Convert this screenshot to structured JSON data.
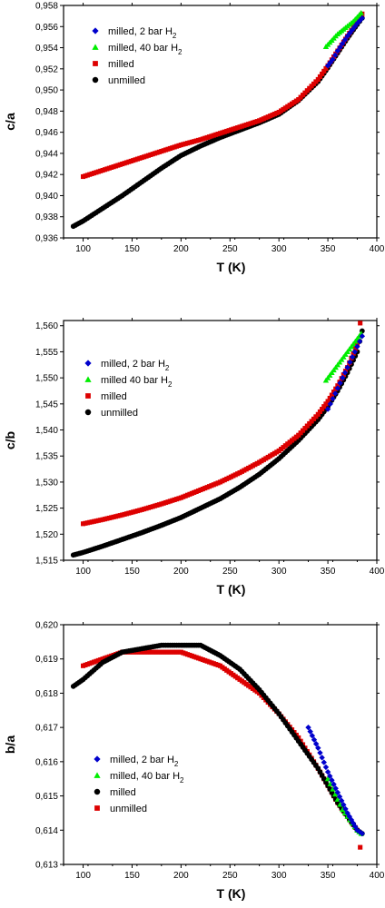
{
  "chart_data": [
    {
      "type": "scatter",
      "xlabel": "T (K)",
      "ylabel": "c/a",
      "xlim": [
        80,
        400
      ],
      "ylim": [
        0.936,
        0.958
      ],
      "xticks": [
        100,
        150,
        200,
        250,
        300,
        350,
        400
      ],
      "xtick_labels": [
        "100",
        "150",
        "200",
        "250",
        "300",
        "350",
        "400"
      ],
      "yticks": [
        0.936,
        0.938,
        0.94,
        0.942,
        0.944,
        0.946,
        0.948,
        0.95,
        0.952,
        0.954,
        0.956,
        0.958
      ],
      "ytick_labels": [
        "0,936",
        "0,938",
        "0,940",
        "0,942",
        "0,944",
        "0,946",
        "0,948",
        "0,950",
        "0,952",
        "0,954",
        "0,956",
        "0,958"
      ],
      "legend_position": "top-left",
      "series": [
        {
          "name": "milled, 2 bar H",
          "sub": "2",
          "marker": "diamond",
          "color": "#0000cc",
          "x": [
            350,
            355,
            360,
            365,
            370,
            375,
            380,
            385
          ],
          "y": [
            0.9523,
            0.9529,
            0.9537,
            0.9544,
            0.9551,
            0.9557,
            0.9563,
            0.9568
          ]
        },
        {
          "name": "milled, 40 bar H",
          "sub": "2",
          "marker": "triangle",
          "color": "#00ee00",
          "x": [
            348,
            352,
            356,
            360,
            364,
            368,
            372,
            376,
            380,
            384
          ],
          "y": [
            0.9541,
            0.9545,
            0.9549,
            0.9553,
            0.9556,
            0.9559,
            0.9562,
            0.9565,
            0.9569,
            0.9573
          ]
        },
        {
          "name": "milled",
          "sub": "",
          "marker": "square",
          "color": "#dd0000",
          "x": [
            100,
            120,
            140,
            160,
            180,
            200,
            220,
            240,
            260,
            280,
            300,
            320,
            340,
            350,
            360,
            370,
            380,
            385
          ],
          "y": [
            0.9418,
            0.9424,
            0.943,
            0.9436,
            0.9442,
            0.9448,
            0.9453,
            0.9459,
            0.9465,
            0.9471,
            0.9479,
            0.9491,
            0.951,
            0.9523,
            0.9537,
            0.9551,
            0.9565,
            0.9572
          ]
        },
        {
          "name": "unmilled",
          "sub": "",
          "marker": "circle",
          "color": "#000000",
          "x": [
            90,
            100,
            120,
            140,
            160,
            180,
            200,
            220,
            240,
            260,
            280,
            300,
            320,
            340,
            350,
            360,
            370,
            380,
            385
          ],
          "y": [
            0.9371,
            0.9376,
            0.9388,
            0.94,
            0.9413,
            0.9426,
            0.9438,
            0.9447,
            0.9455,
            0.9462,
            0.9469,
            0.9477,
            0.949,
            0.9508,
            0.9521,
            0.9535,
            0.9549,
            0.9562,
            0.9568
          ]
        }
      ]
    },
    {
      "type": "scatter",
      "xlabel": "T (K)",
      "ylabel": "c/b",
      "xlim": [
        80,
        400
      ],
      "ylim": [
        1.515,
        1.561
      ],
      "xticks": [
        100,
        150,
        200,
        250,
        300,
        350,
        400
      ],
      "xtick_labels": [
        "100",
        "150",
        "200",
        "250",
        "300",
        "350",
        "400"
      ],
      "yticks": [
        1.515,
        1.52,
        1.525,
        1.53,
        1.535,
        1.54,
        1.545,
        1.55,
        1.555,
        1.56
      ],
      "ytick_labels": [
        "1,515",
        "1,520",
        "1,525",
        "1,530",
        "1,535",
        "1,540",
        "1,545",
        "1,550",
        "1,555",
        "1,560"
      ],
      "legend_position": "top-left",
      "series": [
        {
          "name": "milled, 2 bar H",
          "sub": "2",
          "marker": "diamond",
          "color": "#0000cc",
          "x": [
            350,
            355,
            360,
            365,
            370,
            375,
            380,
            385
          ],
          "y": [
            1.544,
            1.546,
            1.548,
            1.55,
            1.552,
            1.554,
            1.556,
            1.558
          ]
        },
        {
          "name": "milled 40 bar H",
          "sub": "2",
          "marker": "triangle",
          "color": "#00ee00",
          "x": [
            348,
            352,
            356,
            360,
            364,
            368,
            372,
            376,
            380,
            384
          ],
          "y": [
            1.5495,
            1.5505,
            1.5515,
            1.5525,
            1.5535,
            1.5545,
            1.5555,
            1.5565,
            1.5575,
            1.5585
          ]
        },
        {
          "name": "milled",
          "sub": "",
          "marker": "square",
          "color": "#dd0000",
          "x": [
            100,
            120,
            140,
            160,
            180,
            200,
            220,
            240,
            260,
            280,
            300,
            320,
            340,
            350,
            360,
            370,
            380,
            383
          ],
          "y": [
            1.522,
            1.5228,
            1.5237,
            1.5247,
            1.5258,
            1.527,
            1.5285,
            1.53,
            1.5318,
            1.5338,
            1.536,
            1.539,
            1.543,
            1.5455,
            1.5485,
            1.552,
            1.5565,
            1.5605
          ]
        },
        {
          "name": "unmilled",
          "sub": "",
          "marker": "circle",
          "color": "#000000",
          "x": [
            90,
            100,
            120,
            140,
            160,
            180,
            200,
            220,
            240,
            260,
            280,
            300,
            320,
            340,
            350,
            360,
            370,
            380,
            385
          ],
          "y": [
            1.516,
            1.5165,
            1.5177,
            1.519,
            1.5203,
            1.5217,
            1.5232,
            1.525,
            1.5268,
            1.529,
            1.5315,
            1.5345,
            1.538,
            1.542,
            1.5445,
            1.5475,
            1.551,
            1.555,
            1.559
          ]
        }
      ]
    },
    {
      "type": "scatter",
      "xlabel": "T (K)",
      "ylabel": "b/a",
      "xlim": [
        80,
        400
      ],
      "ylim": [
        0.613,
        0.62
      ],
      "xticks": [
        100,
        150,
        200,
        250,
        300,
        350,
        400
      ],
      "xtick_labels": [
        "100",
        "150",
        "200",
        "250",
        "300",
        "350",
        "400"
      ],
      "yticks": [
        0.613,
        0.614,
        0.615,
        0.616,
        0.617,
        0.618,
        0.619,
        0.62
      ],
      "ytick_labels": [
        "0,613",
        "0,614",
        "0,615",
        "0,616",
        "0,617",
        "0,618",
        "0,619",
        "0,620"
      ],
      "legend_position": "bottom-left",
      "series": [
        {
          "name": "milled, 2 bar H",
          "sub": "2",
          "marker": "diamond",
          "color": "#0000cc",
          "x": [
            330,
            340,
            350,
            360,
            370,
            380,
            385
          ],
          "y": [
            0.617,
            0.6164,
            0.6157,
            0.6151,
            0.6145,
            0.614,
            0.6139
          ]
        },
        {
          "name": "milled, 40 bar H",
          "sub": "2",
          "marker": "triangle",
          "color": "#00ee00",
          "x": [
            350,
            355,
            360,
            365,
            370,
            375,
            380,
            384
          ],
          "y": [
            0.6155,
            0.6152,
            0.6149,
            0.6146,
            0.6144,
            0.6142,
            0.614,
            0.6139
          ]
        },
        {
          "name": "milled",
          "sub": "",
          "marker": "circle",
          "color": "#000000",
          "x": [
            90,
            100,
            120,
            140,
            160,
            180,
            200,
            210,
            220,
            240,
            260,
            280,
            300,
            320,
            340,
            350,
            360,
            370,
            380,
            385
          ],
          "y": [
            0.6182,
            0.6184,
            0.6189,
            0.6192,
            0.6193,
            0.6194,
            0.6194,
            0.6194,
            0.6194,
            0.6191,
            0.6187,
            0.6181,
            0.6174,
            0.6166,
            0.6158,
            0.6153,
            0.6148,
            0.6144,
            0.614,
            0.6139
          ]
        },
        {
          "name": "unmilled",
          "sub": "",
          "marker": "square",
          "color": "#dd0000",
          "x": [
            100,
            120,
            140,
            160,
            180,
            200,
            220,
            240,
            260,
            280,
            300,
            320,
            340,
            350,
            360,
            370,
            380,
            383
          ],
          "y": [
            0.6188,
            0.619,
            0.6192,
            0.6192,
            0.6192,
            0.6192,
            0.619,
            0.6188,
            0.6184,
            0.618,
            0.6174,
            0.6167,
            0.6158,
            0.6153,
            0.6148,
            0.6144,
            0.614,
            0.6135
          ]
        }
      ]
    }
  ]
}
